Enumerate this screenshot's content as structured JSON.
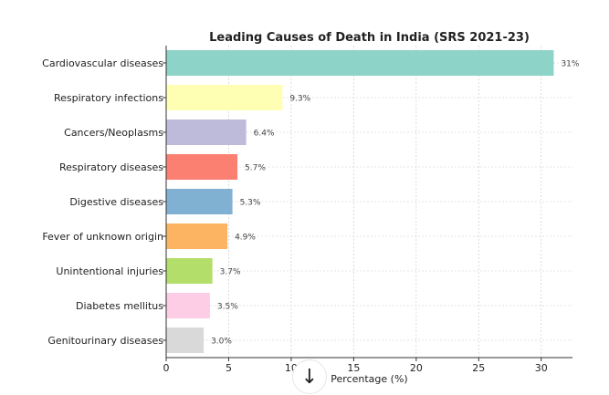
{
  "chart_data": {
    "type": "bar",
    "orientation": "horizontal",
    "title": "Leading Causes of Death in India (SRS 2021-23)",
    "xlabel": "Percentage (%)",
    "ylabel": "",
    "xlim": [
      0,
      32.5
    ],
    "xticks": [
      0,
      5,
      10,
      15,
      20,
      25,
      30
    ],
    "grid": true,
    "categories": [
      "Cardiovascular diseases",
      "Respiratory infections",
      "Cancers/Neoplasms",
      "Respiratory diseases",
      "Digestive diseases",
      "Fever of unknown origin",
      "Unintentional injuries",
      "Diabetes mellitus",
      "Genitourinary diseases"
    ],
    "values": [
      31,
      9.3,
      6.4,
      5.7,
      5.3,
      4.9,
      3.7,
      3.5,
      3.0
    ],
    "labels": [
      "31%",
      "9.3%",
      "6.4%",
      "5.7%",
      "5.3%",
      "4.9%",
      "3.7%",
      "3.5%",
      "3.0%"
    ],
    "colors": [
      "#8dd3c7",
      "#ffffb3",
      "#bebada",
      "#fb8072",
      "#80b1d3",
      "#fdb462",
      "#b3de69",
      "#fccde5",
      "#d9d9d9"
    ]
  },
  "overlay": {
    "scroll_down_icon": "arrow-down-icon",
    "scroll_glyph": "↓"
  }
}
